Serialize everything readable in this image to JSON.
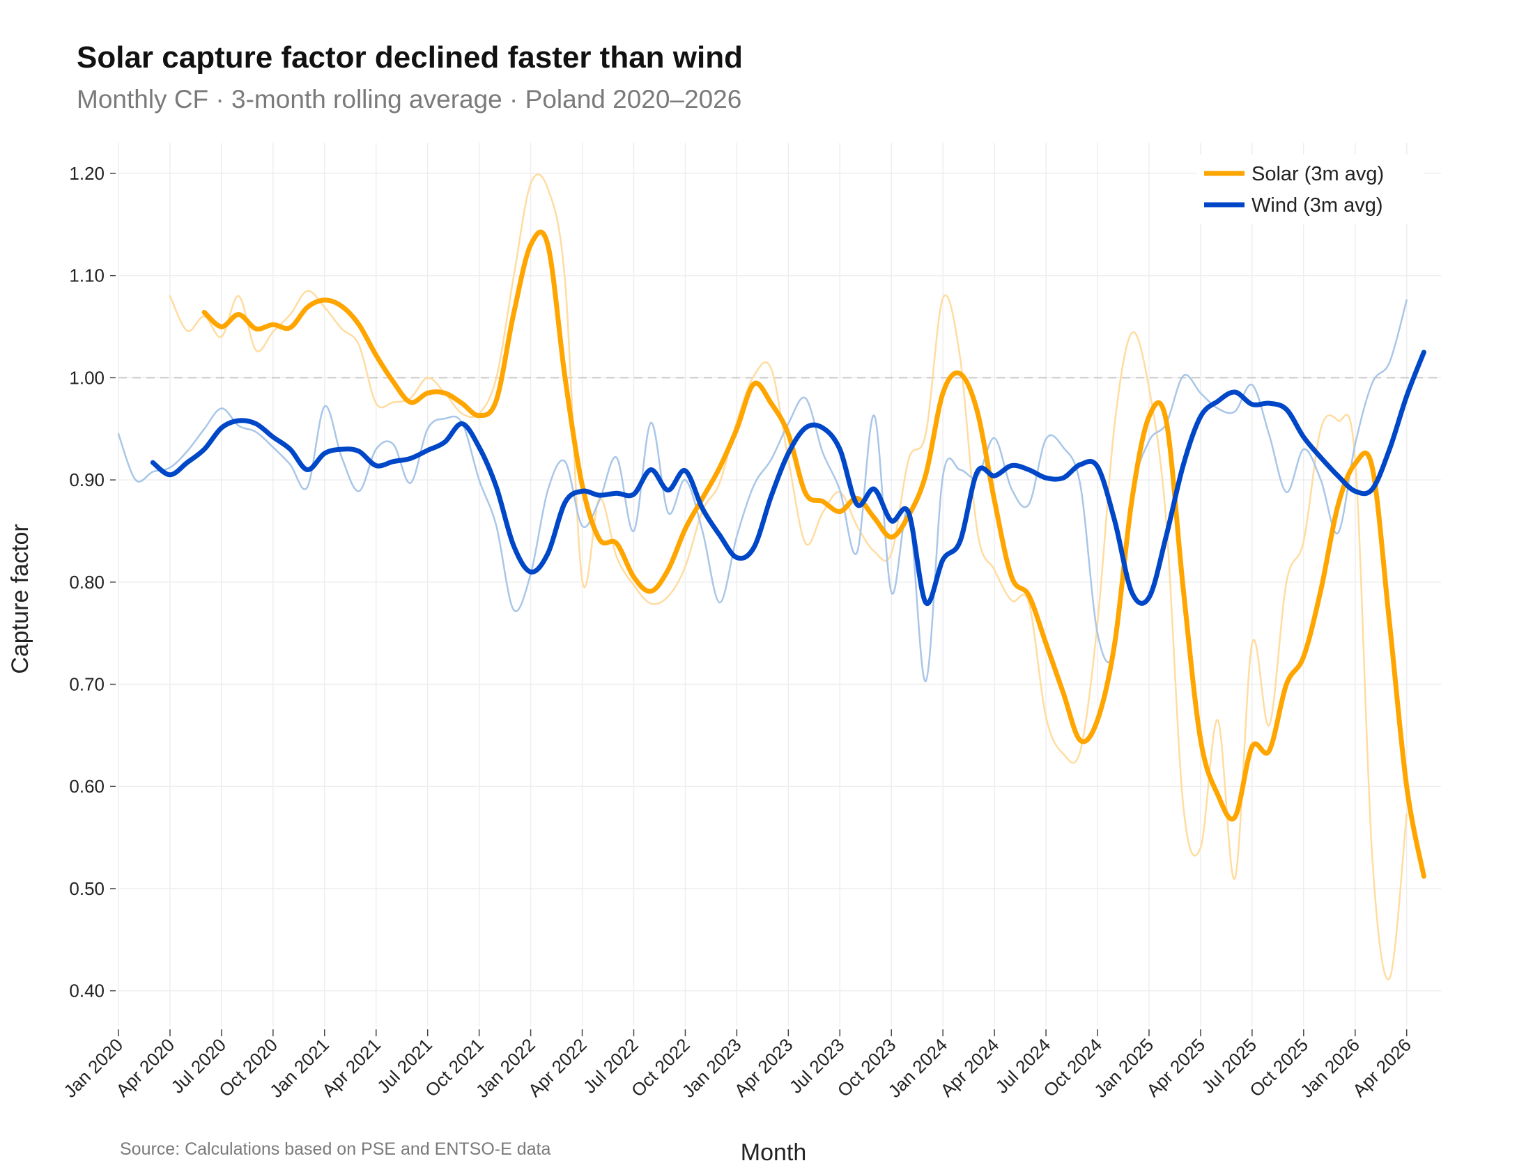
{
  "chart_data": {
    "type": "line",
    "title": "Solar capture factor declined faster than wind",
    "subtitle": "Monthly CF · 3-month rolling average · Poland 2020–2026",
    "source": "Source: Calculations based on PSE and ENTSO-E data",
    "xlabel": "Month",
    "ylabel": "Capture factor",
    "ylim": [
      0.365,
      1.23
    ],
    "xlim": [
      "2020-01",
      "2026-06"
    ],
    "yticks": [
      "0.40",
      "0.50",
      "0.60",
      "0.70",
      "0.80",
      "0.90",
      "1.00",
      "1.10",
      "1.20"
    ],
    "xticks": [
      "Jan 2020",
      "Apr 2020",
      "Jul 2020",
      "Oct 2020",
      "Jan 2021",
      "Apr 2021",
      "Jul 2021",
      "Oct 2021",
      "Jan 2022",
      "Apr 2022",
      "Jul 2022",
      "Oct 2022",
      "Jan 2023",
      "Apr 2023",
      "Jul 2023",
      "Oct 2023",
      "Jan 2024",
      "Apr 2024",
      "Jul 2024",
      "Oct 2024",
      "Jan 2025",
      "Apr 2025",
      "Jul 2025",
      "Oct 2025",
      "Jan 2026",
      "Apr 2026"
    ],
    "reference_line": 1.0,
    "legend_position": "top-right",
    "grid": true,
    "colors": {
      "solar": "#FFA500",
      "wind": "#0047C8",
      "solar_monthly": "#FFDCA0",
      "wind_monthly": "#A9C6E8",
      "grid": "#eeeeee",
      "reference": "#c8c8c8"
    },
    "series": [
      {
        "name": "Solar (3m avg)",
        "style": "thick",
        "color": "#FFA500",
        "start": "2020-06",
        "values": [
          1.064,
          1.05,
          1.062,
          1.048,
          1.052,
          1.049,
          1.069,
          1.076,
          1.07,
          1.052,
          1.022,
          0.996,
          0.976,
          0.985,
          0.985,
          0.975,
          0.963,
          0.978,
          1.062,
          1.13,
          1.13,
          1.0,
          0.895,
          0.842,
          0.838,
          0.805,
          0.791,
          0.812,
          0.852,
          0.882,
          0.912,
          0.95,
          0.994,
          0.975,
          0.945,
          0.887,
          0.879,
          0.869,
          0.882,
          0.863,
          0.844,
          0.865,
          0.905,
          0.985,
          1.004,
          0.967,
          0.88,
          0.805,
          0.787,
          0.74,
          0.692,
          0.645,
          0.665,
          0.74,
          0.88,
          0.962,
          0.958,
          0.792,
          0.646,
          0.592,
          0.57,
          0.639,
          0.635,
          0.7,
          0.727,
          0.792,
          0.875,
          0.916,
          0.912,
          0.76,
          0.6,
          0.512
        ]
      },
      {
        "name": "Wind (3m avg)",
        "style": "thick",
        "color": "#0047C8",
        "start": "2020-03",
        "values": [
          0.917,
          0.905,
          0.917,
          0.93,
          0.951,
          0.958,
          0.955,
          0.942,
          0.93,
          0.91,
          0.926,
          0.93,
          0.928,
          0.914,
          0.918,
          0.921,
          0.929,
          0.937,
          0.955,
          0.932,
          0.893,
          0.836,
          0.81,
          0.828,
          0.878,
          0.889,
          0.885,
          0.887,
          0.886,
          0.91,
          0.89,
          0.909,
          0.872,
          0.846,
          0.824,
          0.834,
          0.884,
          0.926,
          0.951,
          0.951,
          0.93,
          0.876,
          0.891,
          0.86,
          0.868,
          0.78,
          0.822,
          0.84,
          0.908,
          0.904,
          0.914,
          0.91,
          0.902,
          0.902,
          0.915,
          0.913,
          0.86,
          0.79,
          0.785,
          0.845,
          0.915,
          0.962,
          0.977,
          0.986,
          0.974,
          0.975,
          0.969,
          0.942,
          0.922,
          0.904,
          0.889,
          0.891,
          0.93,
          0.982,
          1.025
        ]
      },
      {
        "style": "thin",
        "color": "#FFDCA0",
        "start": "2020-04",
        "values": [
          1.08,
          1.046,
          1.06,
          1.04,
          1.08,
          1.027,
          1.045,
          1.062,
          1.085,
          1.069,
          1.048,
          1.032,
          0.975,
          0.976,
          0.98,
          1.0,
          0.985,
          0.965,
          0.965,
          1.0,
          1.098,
          1.19,
          1.185,
          1.095,
          0.802,
          0.882,
          0.825,
          0.797,
          0.779,
          0.786,
          0.815,
          0.87,
          0.897,
          0.957,
          1.002,
          1.009,
          0.92,
          0.838,
          0.868,
          0.888,
          0.855,
          0.83,
          0.828,
          0.92,
          0.945,
          1.078,
          1.02,
          0.85,
          0.812,
          0.782,
          0.78,
          0.668,
          0.632,
          0.635,
          0.76,
          0.955,
          1.044,
          0.99,
          0.86,
          0.58,
          0.54,
          0.665,
          0.51,
          0.74,
          0.66,
          0.8,
          0.84,
          0.95,
          0.958,
          0.92,
          0.53,
          0.412,
          0.573
        ]
      },
      {
        "style": "thin",
        "color": "#A9C6E8",
        "start": "2020-01",
        "values": [
          0.945,
          0.9,
          0.908,
          0.912,
          0.928,
          0.95,
          0.97,
          0.953,
          0.947,
          0.932,
          0.915,
          0.893,
          0.972,
          0.922,
          0.889,
          0.93,
          0.935,
          0.897,
          0.95,
          0.96,
          0.956,
          0.9,
          0.855,
          0.773,
          0.808,
          0.89,
          0.918,
          0.855,
          0.88,
          0.922,
          0.85,
          0.956,
          0.868,
          0.9,
          0.85,
          0.78,
          0.845,
          0.895,
          0.92,
          0.955,
          0.98,
          0.927,
          0.89,
          0.829,
          0.963,
          0.79,
          0.87,
          0.703,
          0.904,
          0.91,
          0.903,
          0.941,
          0.891,
          0.876,
          0.94,
          0.932,
          0.895,
          0.75,
          0.733,
          0.883,
          0.938,
          0.955,
          1.002,
          0.985,
          0.97,
          0.967,
          0.993,
          0.944,
          0.888,
          0.93,
          0.9,
          0.848,
          0.935,
          0.995,
          1.015,
          1.076
        ]
      }
    ]
  }
}
